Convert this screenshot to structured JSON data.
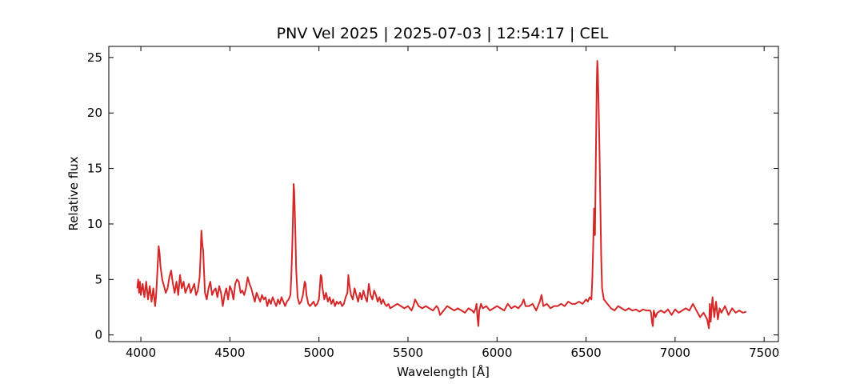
{
  "chart_data": {
    "type": "line",
    "title": "PNV Vel 2025 | 2025-07-03 | 12:54:17 | CEL",
    "xlabel": "Wavelength [Å]",
    "ylabel": "Relative flux",
    "xlim": [
      3820,
      7580
    ],
    "ylim": [
      -0.6,
      26.0
    ],
    "xticks": [
      4000,
      4500,
      5000,
      5500,
      6000,
      6500,
      7000,
      7500
    ],
    "yticks": [
      0,
      5,
      10,
      15,
      20,
      25
    ],
    "grid": false,
    "legend": "none",
    "series": [
      {
        "color": "#d62728",
        "x": [
          3980,
          3985,
          3990,
          3995,
          4000,
          4010,
          4020,
          4030,
          4040,
          4050,
          4060,
          4070,
          4080,
          4085,
          4090,
          4095,
          4100,
          4105,
          4110,
          4120,
          4130,
          4140,
          4150,
          4160,
          4170,
          4180,
          4190,
          4200,
          4210,
          4220,
          4230,
          4240,
          4250,
          4260,
          4270,
          4280,
          4290,
          4300,
          4310,
          4320,
          4330,
          4335,
          4340,
          4345,
          4350,
          4355,
          4360,
          4370,
          4380,
          4390,
          4400,
          4410,
          4420,
          4430,
          4440,
          4450,
          4460,
          4470,
          4480,
          4490,
          4500,
          4510,
          4520,
          4530,
          4540,
          4550,
          4560,
          4570,
          4580,
          4590,
          4600,
          4610,
          4620,
          4630,
          4640,
          4650,
          4660,
          4670,
          4680,
          4690,
          4700,
          4710,
          4720,
          4730,
          4740,
          4750,
          4760,
          4770,
          4780,
          4790,
          4800,
          4810,
          4820,
          4830,
          4840,
          4845,
          4850,
          4855,
          4858,
          4861,
          4864,
          4868,
          4872,
          4880,
          4890,
          4900,
          4910,
          4920,
          4925,
          4930,
          4940,
          4950,
          4960,
          4970,
          4980,
          4990,
          5000,
          5010,
          5015,
          5020,
          5030,
          5040,
          5050,
          5060,
          5070,
          5080,
          5090,
          5100,
          5110,
          5120,
          5130,
          5140,
          5150,
          5160,
          5165,
          5170,
          5180,
          5190,
          5200,
          5210,
          5220,
          5230,
          5240,
          5250,
          5260,
          5270,
          5280,
          5290,
          5300,
          5310,
          5320,
          5330,
          5340,
          5350,
          5360,
          5370,
          5380,
          5390,
          5400,
          5420,
          5440,
          5460,
          5480,
          5500,
          5520,
          5530,
          5540,
          5560,
          5580,
          5600,
          5620,
          5640,
          5660,
          5670,
          5680,
          5700,
          5720,
          5740,
          5760,
          5780,
          5800,
          5820,
          5840,
          5860,
          5870,
          5880,
          5885,
          5890,
          5895,
          5900,
          5910,
          5920,
          5940,
          5960,
          5980,
          6000,
          6020,
          6040,
          6060,
          6080,
          6100,
          6120,
          6140,
          6150,
          6160,
          6180,
          6200,
          6220,
          6240,
          6250,
          6260,
          6280,
          6300,
          6320,
          6340,
          6360,
          6380,
          6400,
          6420,
          6440,
          6460,
          6480,
          6500,
          6510,
          6520,
          6530,
          6535,
          6540,
          6545,
          6550,
          6555,
          6560,
          6563,
          6566,
          6570,
          6575,
          6580,
          6585,
          6590,
          6600,
          6620,
          6640,
          6660,
          6680,
          6700,
          6720,
          6740,
          6760,
          6780,
          6800,
          6820,
          6840,
          6860,
          6865,
          6870,
          6875,
          6880,
          6890,
          6900,
          6920,
          6940,
          6960,
          6980,
          7000,
          7020,
          7040,
          7060,
          7080,
          7100,
          7120,
          7140,
          7160,
          7180,
          7185,
          7190,
          7195,
          7200,
          7210,
          7220,
          7230,
          7240,
          7250,
          7260,
          7280,
          7300,
          7320,
          7340,
          7360,
          7380,
          7400
        ],
        "y": [
          4.2,
          5.0,
          3.8,
          4.8,
          3.6,
          4.6,
          3.4,
          4.8,
          3.2,
          4.4,
          3.0,
          4.2,
          2.6,
          3.4,
          4.8,
          6.5,
          8.0,
          7.4,
          6.2,
          5.0,
          4.4,
          3.8,
          4.2,
          5.2,
          5.8,
          4.6,
          3.8,
          4.8,
          3.6,
          5.4,
          4.2,
          4.8,
          3.8,
          4.2,
          4.6,
          3.8,
          4.2,
          4.6,
          3.6,
          4.0,
          5.2,
          7.0,
          9.4,
          8.2,
          7.6,
          5.6,
          3.8,
          3.2,
          4.2,
          4.8,
          3.6,
          4.0,
          4.2,
          3.4,
          4.4,
          3.8,
          2.6,
          3.6,
          4.2,
          3.2,
          4.4,
          4.0,
          3.2,
          4.6,
          5.0,
          4.8,
          3.8,
          4.0,
          3.6,
          4.2,
          5.2,
          4.6,
          4.2,
          3.6,
          3.0,
          3.8,
          3.4,
          3.0,
          3.6,
          3.2,
          3.4,
          2.6,
          3.2,
          2.8,
          3.4,
          3.0,
          2.6,
          3.2,
          2.8,
          3.4,
          3.0,
          2.6,
          3.0,
          3.2,
          3.6,
          5.4,
          7.8,
          11.2,
          13.6,
          13.0,
          11.4,
          9.0,
          6.0,
          3.4,
          2.8,
          3.0,
          3.6,
          4.8,
          4.6,
          3.6,
          2.8,
          2.6,
          2.8,
          3.0,
          2.6,
          2.8,
          3.2,
          5.4,
          5.2,
          4.2,
          3.2,
          3.8,
          3.0,
          3.4,
          2.8,
          3.2,
          2.6,
          3.0,
          2.8,
          3.0,
          2.6,
          2.8,
          3.4,
          3.8,
          5.4,
          4.6,
          3.6,
          3.2,
          4.2,
          3.6,
          3.0,
          3.8,
          3.2,
          4.0,
          3.4,
          3.0,
          4.6,
          3.6,
          3.2,
          4.0,
          3.6,
          3.0,
          3.4,
          2.8,
          3.2,
          2.8,
          2.6,
          2.8,
          2.4,
          2.6,
          2.8,
          2.6,
          2.4,
          2.6,
          2.2,
          2.6,
          3.2,
          2.6,
          2.4,
          2.6,
          2.4,
          2.2,
          2.6,
          2.4,
          1.8,
          2.2,
          2.6,
          2.4,
          2.2,
          2.4,
          2.2,
          2.0,
          2.4,
          2.2,
          2.0,
          2.4,
          2.8,
          1.6,
          0.8,
          2.2,
          2.8,
          2.4,
          2.6,
          2.2,
          2.4,
          2.6,
          2.4,
          2.2,
          2.8,
          2.4,
          2.6,
          2.4,
          2.8,
          3.2,
          2.6,
          2.6,
          2.8,
          2.2,
          3.0,
          3.6,
          2.6,
          2.8,
          2.4,
          2.6,
          2.6,
          2.8,
          2.6,
          3.0,
          2.8,
          2.8,
          3.0,
          2.8,
          3.2,
          3.0,
          3.4,
          3.2,
          5.0,
          8.0,
          11.4,
          9.0,
          16.0,
          22.5,
          24.7,
          23.8,
          21.0,
          17.0,
          12.0,
          7.0,
          4.2,
          3.2,
          2.8,
          2.4,
          2.2,
          2.6,
          2.4,
          2.2,
          2.4,
          2.2,
          2.3,
          2.1,
          2.3,
          2.2,
          2.2,
          2.0,
          1.2,
          0.8,
          2.2,
          1.6,
          2.0,
          2.2,
          2.0,
          2.3,
          1.8,
          2.3,
          2.0,
          2.2,
          2.4,
          2.2,
          2.8,
          2.2,
          1.6,
          2.0,
          1.4,
          1.0,
          0.6,
          2.8,
          1.2,
          3.4,
          1.6,
          3.0,
          1.4,
          2.4,
          2.0,
          2.6,
          1.8,
          2.4,
          2.0,
          2.2,
          2.0,
          2.1
        ]
      }
    ]
  }
}
